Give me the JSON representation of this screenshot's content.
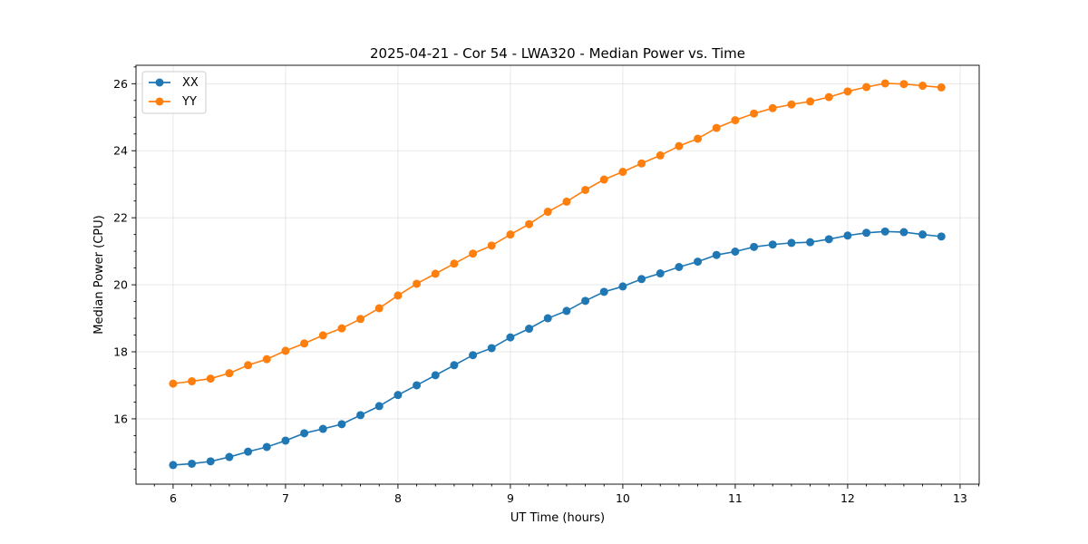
{
  "chart_data": {
    "type": "line",
    "title": "2025-04-21 - Cor 54 - LWA320 - Median Power vs. Time",
    "xlabel": "UT Time (hours)",
    "ylabel": "Median Power (CPU)",
    "xlim": [
      5.67,
      13.17
    ],
    "ylim": [
      14.05,
      26.55
    ],
    "xticks": [
      6,
      7,
      8,
      9,
      10,
      11,
      12,
      13
    ],
    "yticks": [
      16,
      18,
      20,
      22,
      24,
      26
    ],
    "grid": true,
    "legend_position": "top-left",
    "x": [
      6.0,
      6.1667,
      6.3333,
      6.5,
      6.6667,
      6.8333,
      7.0,
      7.1667,
      7.3333,
      7.5,
      7.6667,
      7.8333,
      8.0,
      8.1667,
      8.3333,
      8.5,
      8.6667,
      8.8333,
      9.0,
      9.1667,
      9.3333,
      9.5,
      9.6667,
      9.8333,
      10.0,
      10.1667,
      10.3333,
      10.5,
      10.6667,
      10.8333,
      11.0,
      11.1667,
      11.3333,
      11.5,
      11.6667,
      11.8333,
      12.0,
      12.1667,
      12.3333,
      12.5,
      12.6667,
      12.8333
    ],
    "series": [
      {
        "name": "XX",
        "color": "#1f77b4",
        "values": [
          14.62,
          14.66,
          14.73,
          14.86,
          15.02,
          15.16,
          15.35,
          15.57,
          15.7,
          15.84,
          16.11,
          16.38,
          16.71,
          17.0,
          17.3,
          17.6,
          17.9,
          18.11,
          18.43,
          18.69,
          19.0,
          19.22,
          19.52,
          19.79,
          19.95,
          20.17,
          20.34,
          20.53,
          20.69,
          20.89,
          20.99,
          21.13,
          21.2,
          21.25,
          21.27,
          21.36,
          21.47,
          21.55,
          21.59,
          21.57,
          21.5,
          21.44
        ]
      },
      {
        "name": "YY",
        "color": "#ff7f0e",
        "values": [
          17.05,
          17.12,
          17.2,
          17.36,
          17.6,
          17.78,
          18.03,
          18.25,
          18.49,
          18.7,
          18.98,
          19.3,
          19.68,
          20.03,
          20.33,
          20.63,
          20.93,
          21.17,
          21.5,
          21.81,
          22.18,
          22.48,
          22.83,
          23.14,
          23.37,
          23.62,
          23.86,
          24.14,
          24.36,
          24.68,
          24.91,
          25.11,
          25.27,
          25.38,
          25.47,
          25.6,
          25.77,
          25.9,
          26.01,
          25.99,
          25.94,
          25.89
        ]
      }
    ]
  }
}
